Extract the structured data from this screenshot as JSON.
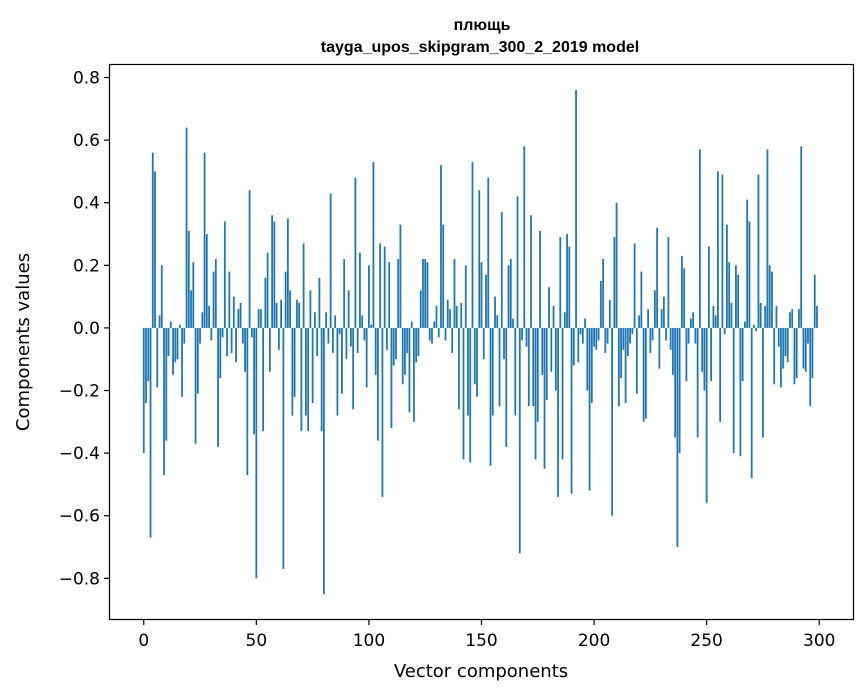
{
  "chart_data": {
    "type": "bar",
    "title_line1": "плющь",
    "title_line2": "tayga_upos_skipgram_300_2_2019 model",
    "xlabel": "Vector components",
    "ylabel": "Components values",
    "xlim": [
      -15,
      315
    ],
    "ylim": [
      -0.93,
      0.84
    ],
    "xticks": [
      0,
      50,
      100,
      150,
      200,
      250,
      300
    ],
    "xtick_labels": [
      "0",
      "50",
      "100",
      "150",
      "200",
      "250",
      "300"
    ],
    "yticks": [
      0.8,
      0.6,
      0.4,
      0.2,
      0.0,
      -0.2,
      -0.4,
      -0.6,
      -0.8
    ],
    "ytick_labels": [
      "0.8",
      "0.6",
      "0.4",
      "0.2",
      "0.0",
      "−0.2",
      "−0.4",
      "−0.6",
      "−0.8"
    ],
    "bar_color": "#1f77b4",
    "values": [
      -0.4,
      -0.24,
      -0.17,
      -0.67,
      0.56,
      0.5,
      -0.19,
      0.04,
      0.2,
      -0.47,
      -0.36,
      -0.09,
      0.02,
      -0.15,
      -0.11,
      -0.1,
      0.01,
      -0.22,
      -0.05,
      0.64,
      0.31,
      0.12,
      0.21,
      -0.37,
      -0.21,
      -0.05,
      0.05,
      0.56,
      0.3,
      0.07,
      -0.04,
      0.18,
      0.22,
      -0.38,
      -0.16,
      -0.03,
      0.34,
      -0.09,
      0.18,
      -0.08,
      0.1,
      -0.11,
      0.06,
      0.08,
      -0.05,
      -0.14,
      -0.47,
      0.44,
      -0.03,
      -0.34,
      -0.8,
      0.06,
      0.06,
      -0.33,
      0.16,
      0.24,
      -0.14,
      0.36,
      0.34,
      0.08,
      -0.07,
      0.09,
      -0.77,
      0.18,
      0.35,
      0.12,
      -0.28,
      -0.22,
      0.09,
      0.08,
      -0.33,
      0.27,
      -0.28,
      -0.33,
      0.12,
      -0.24,
      0.05,
      -0.09,
      0.16,
      -0.33,
      -0.85,
      0.05,
      -0.05,
      0.43,
      -0.08,
      0.04,
      -0.28,
      -0.02,
      -0.21,
      0.22,
      -0.1,
      0.12,
      -0.06,
      -0.26,
      0.48,
      -0.08,
      0.24,
      0.04,
      -0.04,
      -0.19,
      0.2,
      0.01,
      0.53,
      -0.15,
      -0.36,
      0.27,
      -0.54,
      0.26,
      -0.07,
      0.21,
      -0.32,
      -0.12,
      -0.1,
      0.22,
      0.33,
      -0.18,
      -0.15,
      -0.08,
      -0.27,
      0.02,
      -0.3,
      -0.11,
      -0.09,
      0.12,
      0.22,
      0.22,
      0.21,
      -0.04,
      -0.05,
      0.02,
      0.07,
      -0.03,
      0.52,
      0.33,
      -0.04,
      0.09,
      0.06,
      -0.08,
      0.22,
      0.07,
      -0.26,
      0.08,
      -0.42,
      0.2,
      -0.28,
      -0.43,
      0.53,
      -0.18,
      -0.22,
      0.44,
      0.21,
      -0.1,
      0.17,
      0.48,
      -0.44,
      -0.28,
      0.1,
      0.04,
      -0.25,
      0.37,
      -0.1,
      -0.38,
      0.2,
      0.22,
      0.03,
      -0.28,
      0.42,
      -0.72,
      -0.04,
      0.58,
      -0.06,
      -0.25,
      0.36,
      -0.25,
      -0.42,
      -0.3,
      0.31,
      -0.15,
      -0.45,
      -0.23,
      0.13,
      -0.14,
      0.07,
      -0.2,
      -0.54,
      0.29,
      -0.42,
      0.05,
      0.3,
      0.26,
      -0.53,
      -0.12,
      0.76,
      -0.11,
      -0.02,
      -0.05,
      0.03,
      -0.2,
      -0.52,
      -0.24,
      -0.06,
      -0.07,
      -0.04,
      0.15,
      0.22,
      -0.08,
      -0.05,
      0.09,
      -0.6,
      0.29,
      0.4,
      -0.25,
      -0.16,
      -0.07,
      -0.24,
      -0.09,
      -0.05,
      -0.02,
      0.27,
      -0.21,
      0.04,
      0.18,
      -0.3,
      -0.29,
      0.06,
      -0.08,
      -0.04,
      0.12,
      0.32,
      -0.13,
      0.06,
      0.1,
      -0.04,
      0.29,
      -0.07,
      -0.15,
      -0.35,
      -0.7,
      -0.4,
      0.23,
      0.19,
      -0.17,
      -0.05,
      0.03,
      0.05,
      -0.05,
      -0.35,
      0.57,
      -0.14,
      -0.2,
      -0.56,
      0.26,
      -0.17,
      0.07,
      0.04,
      0.5,
      -0.3,
      0.49,
      -0.02,
      0.33,
      0.21,
      0.08,
      -0.4,
      0.2,
      0.17,
      -0.41,
      -0.17,
      0.02,
      0.41,
      0.34,
      -0.48,
      0.01,
      -0.01,
      0.49,
      0.08,
      -0.35,
      0.07,
      0.57,
      0.2,
      0.18,
      -0.18,
      0.07,
      -0.06,
      -0.19,
      -0.13,
      -0.09,
      -0.11,
      0.05,
      0.06,
      -0.18,
      -0.16,
      0.06,
      0.58,
      -0.13,
      -0.14,
      -0.05,
      -0.25,
      -0.16,
      0.17,
      0.07
    ]
  }
}
